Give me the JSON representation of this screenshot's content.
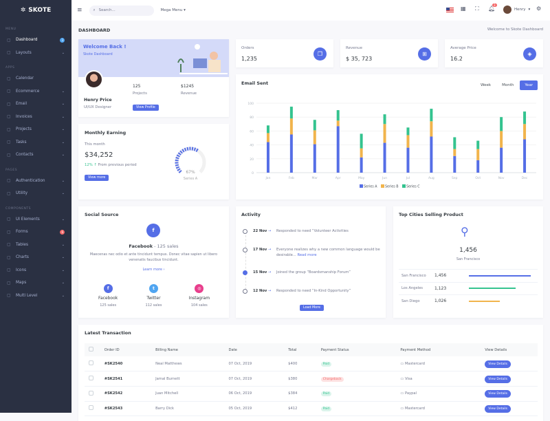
{
  "brand": "SKOTE",
  "sidebar": {
    "sections": [
      {
        "title": "MENU",
        "items": [
          {
            "label": "Dashboard",
            "icon": "home-icon",
            "badge": "3",
            "active": true
          },
          {
            "label": "Layouts",
            "icon": "layout-icon"
          }
        ]
      },
      {
        "title": "APPS",
        "items": [
          {
            "label": "Calendar",
            "icon": "calendar-icon",
            "nochev": true
          },
          {
            "label": "Ecommerce",
            "icon": "store-icon"
          },
          {
            "label": "Email",
            "icon": "envelope-icon"
          },
          {
            "label": "Invoices",
            "icon": "receipt-icon"
          },
          {
            "label": "Projects",
            "icon": "briefcase-icon"
          },
          {
            "label": "Tasks",
            "icon": "task-icon"
          },
          {
            "label": "Contacts",
            "icon": "users-icon"
          }
        ]
      },
      {
        "title": "PAGES",
        "items": [
          {
            "label": "Authentication",
            "icon": "user-circle-icon"
          },
          {
            "label": "Utility",
            "icon": "file-icon"
          }
        ]
      },
      {
        "title": "COMPONENTS",
        "items": [
          {
            "label": "UI Elements",
            "icon": "tshirt-icon"
          },
          {
            "label": "Forms",
            "icon": "eraser-icon",
            "badge": "6",
            "badge_color": "#f46a6a"
          },
          {
            "label": "Tables",
            "icon": "list-icon"
          },
          {
            "label": "Charts",
            "icon": "bar-chart-icon"
          },
          {
            "label": "Icons",
            "icon": "aperture-icon"
          },
          {
            "label": "Maps",
            "icon": "map-pin-icon"
          },
          {
            "label": "Multi Level",
            "icon": "share-icon"
          }
        ]
      }
    ]
  },
  "topbar": {
    "search_placeholder": "Search...",
    "mega_menu": "Mega Menu",
    "notifications": "3",
    "user": "Henry"
  },
  "page": {
    "title": "DASHBOARD",
    "breadcrumb": "Welcome to Skote Dashboard"
  },
  "welcome": {
    "title": "Welcome Back !",
    "subtitle": "Skote Dashboard",
    "name": "Henry Price",
    "role": "UI/UX Designer",
    "projects": "125",
    "projects_label": "Projects",
    "revenue": "$1245",
    "revenue_label": "Revenue",
    "button": "View Profile"
  },
  "earning": {
    "title": "Monthly Earning",
    "period": "This month",
    "amount": "$34,252",
    "change": "12% ↑",
    "change_label": "From previous period",
    "button": "View more",
    "gauge_value": 67,
    "gauge_label": "67%",
    "gauge_series": "Series A"
  },
  "stats": [
    {
      "label": "Orders",
      "value": "1,235",
      "icon": "copy-icon",
      "glyph": "❐"
    },
    {
      "label": "Revenue",
      "value": "$ 35, 723",
      "icon": "archive-icon",
      "glyph": "⊞"
    },
    {
      "label": "Average Price",
      "value": "16.2",
      "icon": "tag-icon",
      "glyph": "◈"
    }
  ],
  "email": {
    "title": "Email Sent",
    "tabs": [
      "Week",
      "Month",
      "Year"
    ],
    "active_tab": "Year"
  },
  "chart_data": {
    "type": "bar",
    "stacked": true,
    "categories": [
      "Jan",
      "Feb",
      "Mar",
      "Apr",
      "May",
      "Jun",
      "Jul",
      "Aug",
      "Sep",
      "Oct",
      "Nov",
      "Dec"
    ],
    "ylim": [
      0,
      100
    ],
    "yticks": [
      0,
      20,
      40,
      60,
      80,
      100
    ],
    "grid": true,
    "legend": "bottom",
    "series": [
      {
        "name": "Series A",
        "color": "#556ee6",
        "values": [
          44,
          55,
          41,
          67,
          22,
          43,
          36,
          52,
          24,
          18,
          36,
          48
        ]
      },
      {
        "name": "Series B",
        "color": "#f1b44c",
        "values": [
          13,
          23,
          20,
          8,
          13,
          27,
          18,
          22,
          10,
          16,
          24,
          22
        ]
      },
      {
        "name": "Series C",
        "color": "#34c38f",
        "values": [
          11,
          17,
          15,
          15,
          21,
          14,
          11,
          18,
          17,
          12,
          20,
          18
        ]
      }
    ]
  },
  "social": {
    "title": "Social Source",
    "headline": "Facebook",
    "headline_sales": "- 125 sales",
    "text": "Maecenas nec odio et ante tincidunt tempus. Donec vitae sapien ut libero venenatis faucibus tincidunt.",
    "link": "Learn more ›",
    "sources": [
      {
        "name": "Facebook",
        "sales": "125 sales",
        "color": "#556ee6",
        "glyph": "f"
      },
      {
        "name": "Twitter",
        "sales": "112 sales",
        "color": "#50a5f1",
        "glyph": "t"
      },
      {
        "name": "Instagram",
        "sales": "104 sales",
        "color": "#e83e8c",
        "glyph": "◎"
      }
    ]
  },
  "activity": {
    "title": "Activity",
    "items": [
      {
        "date": "22 Nov",
        "text": "Responded to need “Volunteer Activities"
      },
      {
        "date": "17 Nov",
        "text": "Everyone realizes why a new common language would be desirable...",
        "link": "Read more"
      },
      {
        "date": "15 Nov",
        "text": "Joined the group “Boardsmanship Forum”",
        "active": true
      },
      {
        "date": "12 Nov",
        "text": "Responded to need “In-Kind Opportunity”"
      }
    ],
    "button": "Load More"
  },
  "cities": {
    "title": "Top Cities Selling Product",
    "value": "1,456",
    "city": "San Francisco",
    "rows": [
      {
        "name": "San Francisco",
        "value": "1,456",
        "percent": 80,
        "color": "#556ee6"
      },
      {
        "name": "Los Angeles",
        "value": "1,123",
        "percent": 60,
        "color": "#34c38f"
      },
      {
        "name": "San Diego",
        "value": "1,026",
        "percent": 40,
        "color": "#f1b44c"
      }
    ]
  },
  "transactions": {
    "title": "Latest Transaction",
    "columns": [
      "Order ID",
      "Billing Name",
      "Date",
      "Total",
      "Payment Status",
      "Payment Method",
      "View Details"
    ],
    "rows": [
      {
        "id": "#SK2540",
        "name": "Neal Matthews",
        "date": "07 Oct, 2019",
        "total": "$400",
        "status": "Paid",
        "method": "Mastercard"
      },
      {
        "id": "#SK2541",
        "name": "Jamal Burnett",
        "date": "07 Oct, 2019",
        "total": "$380",
        "status": "Chargeback",
        "method": "Visa"
      },
      {
        "id": "#SK2542",
        "name": "Juan Mitchell",
        "date": "06 Oct, 2019",
        "total": "$384",
        "status": "Paid",
        "method": "Paypal"
      },
      {
        "id": "#SK2543",
        "name": "Barry Dick",
        "date": "05 Oct, 2019",
        "total": "$412",
        "status": "Paid",
        "method": "Mastercard"
      }
    ],
    "button": "View Details"
  }
}
